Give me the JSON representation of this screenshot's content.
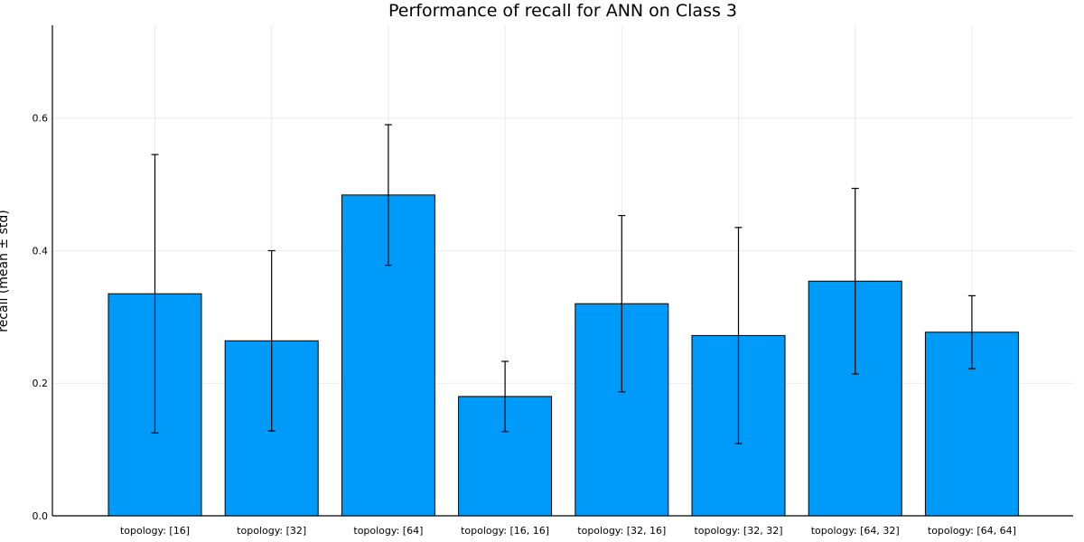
{
  "chart_data": {
    "type": "bar",
    "title": "Performance of recall for ANN on Class 3",
    "xlabel": "",
    "ylabel": "recall (mean ± std)",
    "categories": [
      "topology: [16]",
      "topology: [32]",
      "topology: [64]",
      "topology: [16, 16]",
      "topology: [32, 16]",
      "topology: [32, 32]",
      "topology: [64, 32]",
      "topology: [64, 64]"
    ],
    "series": [
      {
        "values": [
          0.335,
          0.264,
          0.484,
          0.18,
          0.32,
          0.272,
          0.354,
          0.277
        ],
        "error": [
          0.21,
          0.136,
          0.106,
          0.053,
          0.133,
          0.163,
          0.14,
          0.055
        ]
      }
    ],
    "ylim": [
      0,
      0.74
    ],
    "yticks": [
      0.0,
      0.2,
      0.4,
      0.6
    ],
    "ytick_labels": [
      "0.0",
      "0.2",
      "0.4",
      "0.6"
    ],
    "grid": true,
    "legend": "none",
    "colors": {
      "bar": "#009af9",
      "error": "#000000"
    }
  }
}
